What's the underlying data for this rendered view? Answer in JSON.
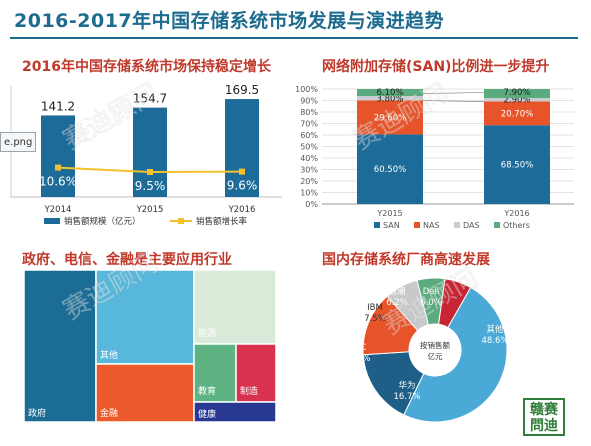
{
  "header": {
    "title": "2016-2017年中国存储系统市场发展与演进趋势"
  },
  "broken_image_text": "e.png",
  "watermark_text": "赛迪顾问",
  "logo_text": "赣赛問迪",
  "colors": {
    "blue": "#1d6b98",
    "orange": "#e8542a",
    "gray": "#c9cdd2",
    "green": "#5bab7f",
    "yellow": "#f3c22c",
    "teal": "#3aa6c9"
  },
  "chart_data": [
    {
      "type": "bar",
      "title": "2016年中国存储系统市场保持稳定增长",
      "categories": [
        "Y2014",
        "Y2015",
        "Y2016"
      ],
      "series": [
        {
          "name": "销售额规模（亿元）",
          "values": [
            141.2,
            154.7,
            169.5
          ],
          "labels": [
            "141.2",
            "154.7",
            "169.5"
          ]
        },
        {
          "name": "销售额增长率",
          "type": "line",
          "values": [
            10.6,
            9.5,
            9.6
          ],
          "labels": [
            "10.6%",
            "9.5%",
            "9.6%"
          ]
        }
      ]
    },
    {
      "type": "bar",
      "stacked": true,
      "title": "网络附加存储(SAN)比例进一步提升",
      "categories": [
        "Y2015",
        "Y2016"
      ],
      "yticks": [
        "0%",
        "10%",
        "20%",
        "30%",
        "40%",
        "50%",
        "60%",
        "70%",
        "80%",
        "90%",
        "100%"
      ],
      "ylim": [
        0,
        100
      ],
      "series": [
        {
          "name": "SAN",
          "values": [
            60.5,
            68.5
          ],
          "labels": [
            "60.50%",
            "68.50%"
          ]
        },
        {
          "name": "NAS",
          "values": [
            29.6,
            20.7
          ],
          "labels": [
            "29.60%",
            "20.70%"
          ]
        },
        {
          "name": "DAS",
          "values": [
            3.8,
            2.9
          ],
          "labels": [
            "3.80%",
            "2.90%"
          ]
        },
        {
          "name": "Others",
          "values": [
            6.1,
            7.9
          ],
          "labels": [
            "6.10%",
            "7.90%"
          ]
        }
      ]
    },
    {
      "type": "heatmap",
      "title": "政府、电信、金融是主要应用行业",
      "cells": [
        {
          "label": "政府",
          "value": 28
        },
        {
          "label": "其他",
          "value": 20
        },
        {
          "label": "金融",
          "value": 16
        },
        {
          "label": "能源",
          "value": 12
        },
        {
          "label": "教育",
          "value": 6
        },
        {
          "label": "制造",
          "value": 5
        },
        {
          "label": "健康",
          "value": 4
        }
      ]
    },
    {
      "type": "pie",
      "title": "国内存储系统厂商高速发展",
      "center_label": "按销售额亿元",
      "slices": [
        {
          "name": "其他",
          "value": 48.6,
          "label": "48.6%"
        },
        {
          "name": "华为",
          "value": 16.7,
          "label": "16.7%"
        },
        {
          "name": "EMC",
          "value": 14.4,
          "label": "14.4%"
        },
        {
          "name": "IBM",
          "value": 7.5,
          "label": "7.5%"
        },
        {
          "name": "浪潮",
          "value": 6.2,
          "label": "6.2%"
        },
        {
          "name": "Dell",
          "value": 6.0,
          "label": "6.0%"
        }
      ]
    }
  ]
}
